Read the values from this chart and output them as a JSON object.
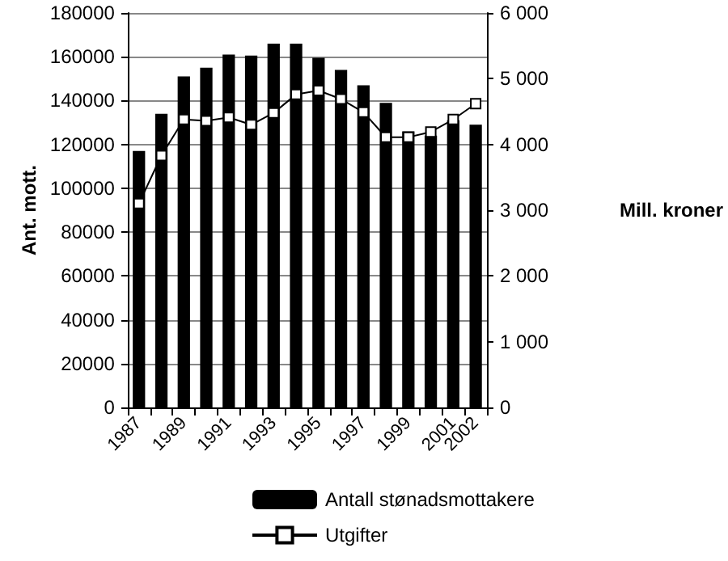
{
  "chart_data": {
    "type": "bar",
    "ylabel": "Ant. mott.",
    "y2label": "Mill. kroner",
    "categories": [
      "1987",
      null,
      "1989",
      null,
      "1991",
      null,
      "1993",
      null,
      "1995",
      null,
      "1997",
      null,
      "1999",
      null,
      "2001",
      "2002"
    ],
    "series": [
      {
        "name": "Antall stønadsmottakere",
        "color": "#000000",
        "values": [
          117000,
          134000,
          151000,
          155000,
          161000,
          160500,
          166000,
          166000,
          159500,
          154000,
          147000,
          139000,
          126000,
          124000,
          131000,
          129000
        ]
      },
      {
        "name": "Utgifter",
        "type": "line",
        "axis": "y2",
        "color": "#000000",
        "marker": "square",
        "values": [
          3100,
          3830,
          4380,
          4360,
          4410,
          4300,
          4480,
          4760,
          4820,
          4690,
          4490,
          4110,
          4110,
          4190,
          4380,
          4620
        ]
      }
    ],
    "ylim": [
      0,
      180000
    ],
    "yticks": [
      0,
      20000,
      40000,
      60000,
      80000,
      100000,
      120000,
      140000,
      160000,
      180000
    ],
    "y2lim": [
      0,
      6000
    ],
    "y2ticks": [
      {
        "value": 0,
        "label": "0"
      },
      {
        "value": 1000,
        "label": "1 000"
      },
      {
        "value": 2000,
        "label": "2 000"
      },
      {
        "value": 3000,
        "label": "3 000"
      },
      {
        "value": 4000,
        "label": "4 000"
      },
      {
        "value": 5000,
        "label": "5 000"
      },
      {
        "value": 6000,
        "label": "6 000"
      }
    ],
    "grid": "y",
    "legend": "bottom"
  }
}
